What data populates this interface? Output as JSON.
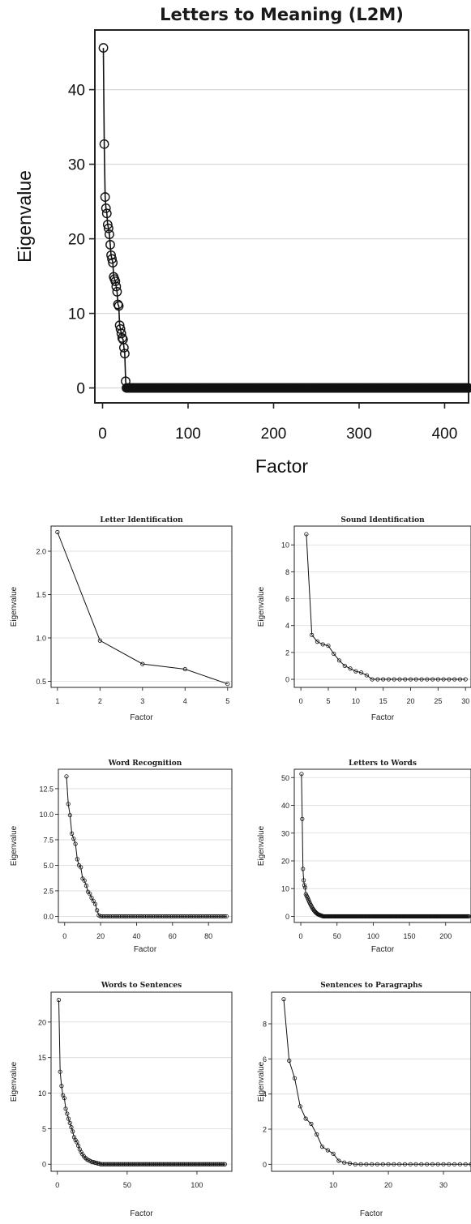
{
  "chart_data": [
    {
      "type": "line",
      "title": "Letters to Meaning (L2M)",
      "xlabel": "Factor",
      "ylabel": "Eigenvalue",
      "xticks": [
        0,
        100,
        200,
        300,
        400
      ],
      "yticks": [
        0,
        10,
        20,
        30,
        40
      ],
      "xlim": [
        -9,
        428
      ],
      "ylim": [
        -2,
        48
      ],
      "grid": "horizontal",
      "marker": "open-circle",
      "x": [
        1,
        2,
        3,
        4,
        5,
        6,
        7,
        8,
        9,
        10,
        11,
        12,
        13,
        14,
        15,
        16,
        17,
        18,
        19,
        20,
        21,
        22,
        23,
        24,
        25,
        26,
        27
      ],
      "values": [
        45.6,
        32.7,
        25.6,
        24.1,
        23.4,
        21.9,
        21.4,
        20.6,
        19.2,
        17.8,
        17.3,
        16.8,
        14.9,
        14.6,
        14.3,
        13.6,
        12.9,
        11.2,
        11.0,
        8.4,
        7.9,
        7.3,
        6.7,
        6.5,
        5.4,
        4.6,
        0.9
      ],
      "tail": {
        "from": 28,
        "to": 428,
        "value": 0
      }
    },
    {
      "type": "line",
      "title": "Letter Identification",
      "xlabel": "Factor",
      "ylabel": "Eigenvalue",
      "xticks": [
        1,
        2,
        3,
        4,
        5
      ],
      "yticks": [
        0.5,
        1.0,
        1.5,
        2.0
      ],
      "tick_labels_y": [
        "0.5",
        "1.0",
        "1.5",
        "2.0"
      ],
      "xlim": [
        0.85,
        5.1
      ],
      "ylim": [
        0.43,
        2.29
      ],
      "grid": "horizontal",
      "marker": "open-circle",
      "x": [
        1,
        2,
        3,
        4,
        5
      ],
      "values": [
        2.22,
        0.97,
        0.7,
        0.64,
        0.47
      ]
    },
    {
      "type": "line",
      "title": "Sound Identification",
      "xlabel": "Factor",
      "ylabel": "Eigenvalue",
      "xticks": [
        0,
        5,
        10,
        15,
        20,
        25,
        30
      ],
      "yticks": [
        0,
        2,
        4,
        6,
        8,
        10
      ],
      "xlim": [
        -1.2,
        31
      ],
      "ylim": [
        -0.6,
        11.4
      ],
      "grid": "horizontal",
      "marker": "open-circle",
      "x": [
        1,
        2,
        3,
        4,
        5,
        6,
        7,
        8,
        9,
        10,
        11,
        12,
        13,
        14,
        15,
        16,
        17,
        18,
        19,
        20,
        21,
        22,
        23,
        24,
        25,
        26,
        27,
        28,
        29,
        30
      ],
      "values": [
        10.8,
        3.3,
        2.8,
        2.6,
        2.5,
        1.9,
        1.4,
        1.0,
        0.8,
        0.6,
        0.5,
        0.3,
        0,
        0,
        0,
        0,
        0,
        0,
        0,
        0,
        0,
        0,
        0,
        0,
        0,
        0,
        0,
        0,
        0,
        0
      ]
    },
    {
      "type": "line",
      "title": "Word Recognition",
      "xlabel": "Factor",
      "ylabel": "Eigenvalue",
      "xticks": [
        0,
        20,
        40,
        60,
        80
      ],
      "yticks": [
        0.0,
        2.5,
        5.0,
        7.5,
        10.0,
        12.5
      ],
      "tick_labels_y": [
        "0.0",
        "2.5",
        "5.0",
        "7.5",
        "10.0",
        "12.5"
      ],
      "xlim": [
        -3.5,
        93
      ],
      "ylim": [
        -0.6,
        14.4
      ],
      "grid": "horizontal",
      "marker": "open-circle",
      "x": [
        1,
        2,
        3,
        4,
        5,
        6,
        7,
        8,
        9,
        10,
        11,
        12,
        13,
        14,
        15,
        16,
        17,
        18,
        19
      ],
      "values": [
        13.7,
        11.0,
        9.9,
        8.1,
        7.6,
        7.1,
        5.6,
        5.0,
        4.8,
        3.7,
        3.5,
        3.0,
        2.4,
        2.2,
        1.8,
        1.5,
        1.2,
        0.6,
        0.1
      ],
      "tail": {
        "from": 20,
        "to": 90,
        "value": 0
      }
    },
    {
      "type": "line",
      "title": "Letters to Words",
      "xlabel": "Factor",
      "ylabel": "Eigenvalue",
      "xticks": [
        0,
        50,
        100,
        150,
        200
      ],
      "yticks": [
        0,
        10,
        20,
        30,
        40,
        50
      ],
      "xlim": [
        -9,
        235
      ],
      "ylim": [
        -2.2,
        53
      ],
      "grid": "horizontal",
      "marker": "open-circle",
      "x": [
        1,
        2,
        3,
        4,
        5,
        6,
        7,
        8,
        9,
        10,
        11,
        12,
        13,
        14,
        15,
        16,
        17,
        18,
        19,
        20,
        21,
        22,
        23,
        24,
        25,
        26,
        27,
        28,
        29,
        30
      ],
      "values": [
        51.3,
        35.1,
        17.1,
        13.0,
        11.2,
        10.4,
        8.0,
        7.4,
        6.9,
        6.3,
        5.7,
        5.1,
        4.5,
        4.0,
        3.5,
        3.0,
        2.6,
        2.2,
        1.9,
        1.6,
        1.3,
        1.1,
        0.9,
        0.7,
        0.6,
        0.5,
        0.4,
        0.3,
        0.2,
        0.1
      ],
      "tail": {
        "from": 31,
        "to": 232,
        "value": 0
      }
    },
    {
      "type": "line",
      "title": "Words to Sentences",
      "xlabel": "Factor",
      "ylabel": "Eigenvalue",
      "xticks": [
        0,
        50,
        100
      ],
      "yticks": [
        0,
        5,
        10,
        15,
        20
      ],
      "xlim": [
        -4.5,
        125
      ],
      "ylim": [
        -1.0,
        24.2
      ],
      "grid": "horizontal",
      "marker": "open-circle",
      "x": [
        1,
        2,
        3,
        4,
        5,
        6,
        7,
        8,
        9,
        10,
        11,
        12,
        13,
        14,
        15,
        16,
        17,
        18,
        19,
        20,
        21,
        22,
        23,
        24,
        25,
        26,
        27,
        28,
        29,
        30
      ],
      "values": [
        23.1,
        13.0,
        11.0,
        9.7,
        9.3,
        7.8,
        7.1,
        6.4,
        5.8,
        5.2,
        4.6,
        3.8,
        3.4,
        3.1,
        2.6,
        2.1,
        1.7,
        1.4,
        1.1,
        0.9,
        0.7,
        0.6,
        0.5,
        0.4,
        0.3,
        0.3,
        0.2,
        0.2,
        0.1,
        0.1
      ],
      "tail": {
        "from": 31,
        "to": 120,
        "value": 0
      }
    },
    {
      "type": "line",
      "title": "Sentences to Paragraphs",
      "xlabel": "Factor",
      "ylabel": "Eigenvalue",
      "xticks": [
        10,
        20,
        30
      ],
      "yticks": [
        0,
        2,
        4,
        6,
        8
      ],
      "xlim": [
        -1.2,
        35
      ],
      "ylim": [
        -0.4,
        9.8
      ],
      "grid": "horizontal",
      "marker": "open-circle",
      "x": [
        1,
        2,
        3,
        4,
        5,
        6,
        7,
        8,
        9,
        10,
        11,
        12,
        13,
        14,
        15,
        16,
        17,
        18,
        19,
        20,
        21,
        22,
        23,
        24,
        25,
        26,
        27,
        28,
        29,
        30,
        31,
        32,
        33,
        34,
        35
      ],
      "values": [
        9.4,
        5.9,
        4.9,
        3.3,
        2.6,
        2.3,
        1.7,
        1.0,
        0.8,
        0.6,
        0.2,
        0.1,
        0.05,
        0,
        0,
        0,
        0,
        0,
        0,
        0,
        0,
        0,
        0,
        0,
        0,
        0,
        0,
        0,
        0,
        0,
        0,
        0,
        0,
        0,
        0
      ]
    }
  ]
}
